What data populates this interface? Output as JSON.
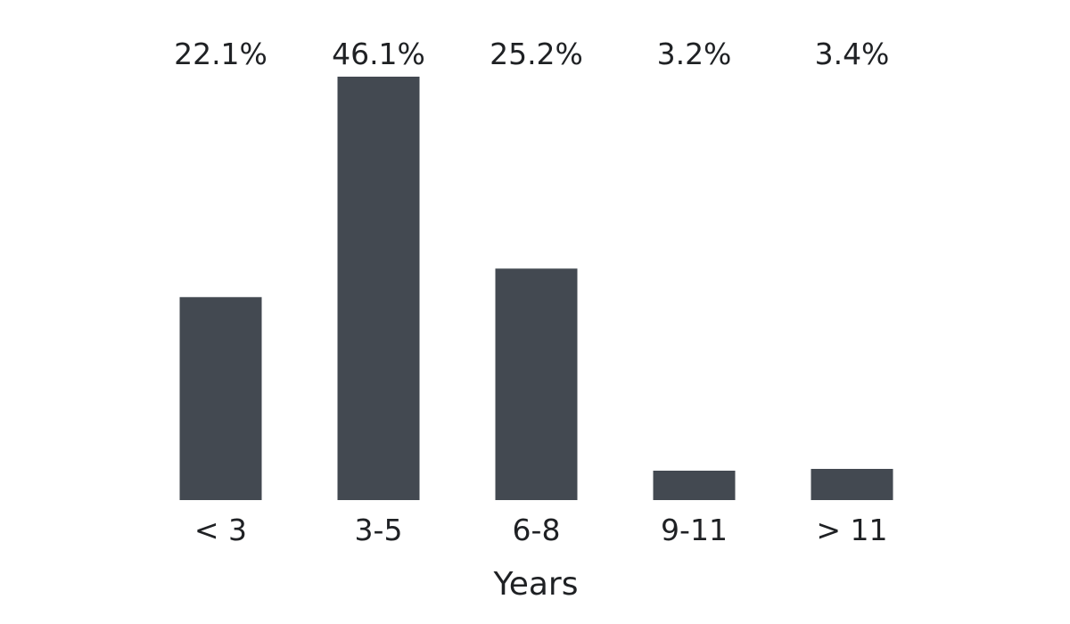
{
  "chart_data": {
    "type": "bar",
    "categories": [
      "< 3",
      "3-5",
      "6-8",
      "9-11",
      "> 11"
    ],
    "values": [
      22.1,
      46.1,
      25.2,
      3.2,
      3.4
    ],
    "data_labels": [
      "22.1%",
      "46.1%",
      "25.2%",
      "3.2%",
      "3.4%"
    ],
    "xlabel": "Years",
    "ylabel": "",
    "ylim": [
      0,
      46.1
    ],
    "grid": false,
    "legend": "none",
    "bar_color": "#434951"
  }
}
